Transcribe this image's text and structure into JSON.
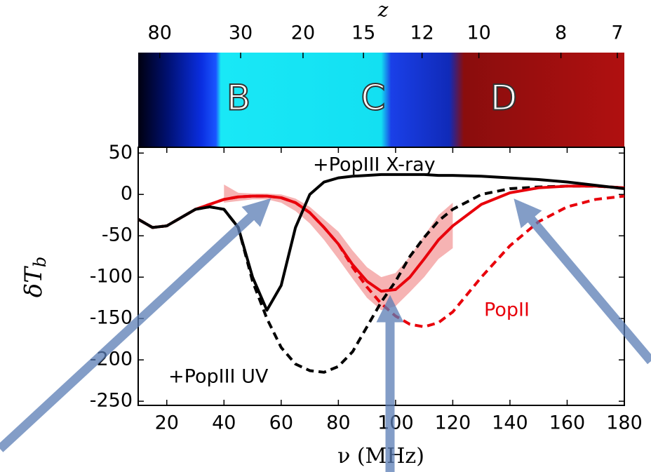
{
  "chart_data": {
    "type": "line",
    "top_axis_label": "z",
    "zticks": [
      80,
      30,
      20,
      15,
      12,
      10,
      8,
      7
    ],
    "panel_labels": [
      "B",
      "C",
      "D"
    ],
    "xlabel": "ν (MHz)",
    "ylabel": "δT",
    "ylabel_sub": "b",
    "xlim": [
      10,
      180
    ],
    "ylim": [
      -255,
      57
    ],
    "xticks": [
      20,
      40,
      60,
      80,
      100,
      120,
      140,
      160,
      180
    ],
    "yticks": [
      50,
      0,
      -50,
      -100,
      -150,
      -200,
      -250
    ],
    "x": [
      10,
      15,
      20,
      25,
      30,
      35,
      40,
      45,
      50,
      55,
      60,
      65,
      70,
      75,
      80,
      85,
      90,
      95,
      100,
      105,
      110,
      115,
      120,
      130,
      140,
      150,
      160,
      170,
      180
    ],
    "series": [
      {
        "name": "+PopIII X-ray",
        "color": "#000000",
        "dashed": false,
        "values": [
          -30,
          -40,
          -38,
          -28,
          -18,
          -15,
          -18,
          -40,
          -100,
          -140,
          -110,
          -40,
          0,
          15,
          20,
          22,
          23,
          24,
          24,
          24,
          24,
          23,
          23,
          22,
          20,
          18,
          15,
          11,
          7
        ]
      },
      {
        "name": "+PopIII UV",
        "color": "#000000",
        "dashed": true,
        "values": [
          -30,
          -40,
          -38,
          -28,
          -18,
          -15,
          -18,
          -40,
          -105,
          -150,
          -185,
          -205,
          -213,
          -215,
          -208,
          -190,
          -160,
          -130,
          -105,
          -75,
          -52,
          -32,
          -18,
          0,
          7,
          9,
          10,
          10,
          8
        ]
      },
      {
        "color": "#e8000b",
        "dashed": false,
        "values": [
          -30,
          -40,
          -38,
          -28,
          -18,
          -12,
          -6,
          -3,
          -2,
          -2,
          -4,
          -10,
          -22,
          -40,
          -60,
          -85,
          -105,
          -117,
          -115,
          -100,
          -78,
          -55,
          -38,
          -12,
          2,
          8,
          10,
          10,
          8
        ]
      },
      {
        "name": "PopII",
        "color": "#e8000b",
        "dashed": true,
        "values": [
          -30,
          -40,
          -38,
          -28,
          -18,
          -12,
          -6,
          -3,
          -2,
          -2,
          -4,
          -10,
          -22,
          -40,
          -60,
          -88,
          -112,
          -132,
          -147,
          -157,
          -160,
          -155,
          -142,
          -100,
          -62,
          -33,
          -15,
          -6,
          -2
        ]
      }
    ],
    "band": {
      "color": "#f4a6a6",
      "x": [
        40,
        45,
        50,
        55,
        60,
        65,
        70,
        75,
        80,
        85,
        90,
        95,
        100,
        105,
        110,
        115,
        120
      ],
      "upper": [
        12,
        2,
        1,
        1,
        0,
        -5,
        -15,
        -30,
        -45,
        -68,
        -88,
        -100,
        -95,
        -75,
        -50,
        -25,
        -10
      ],
      "lower": [
        -10,
        -8,
        -6,
        -6,
        -10,
        -20,
        -35,
        -55,
        -78,
        -102,
        -125,
        -140,
        -135,
        -118,
        -100,
        -78,
        -65
      ]
    }
  }
}
